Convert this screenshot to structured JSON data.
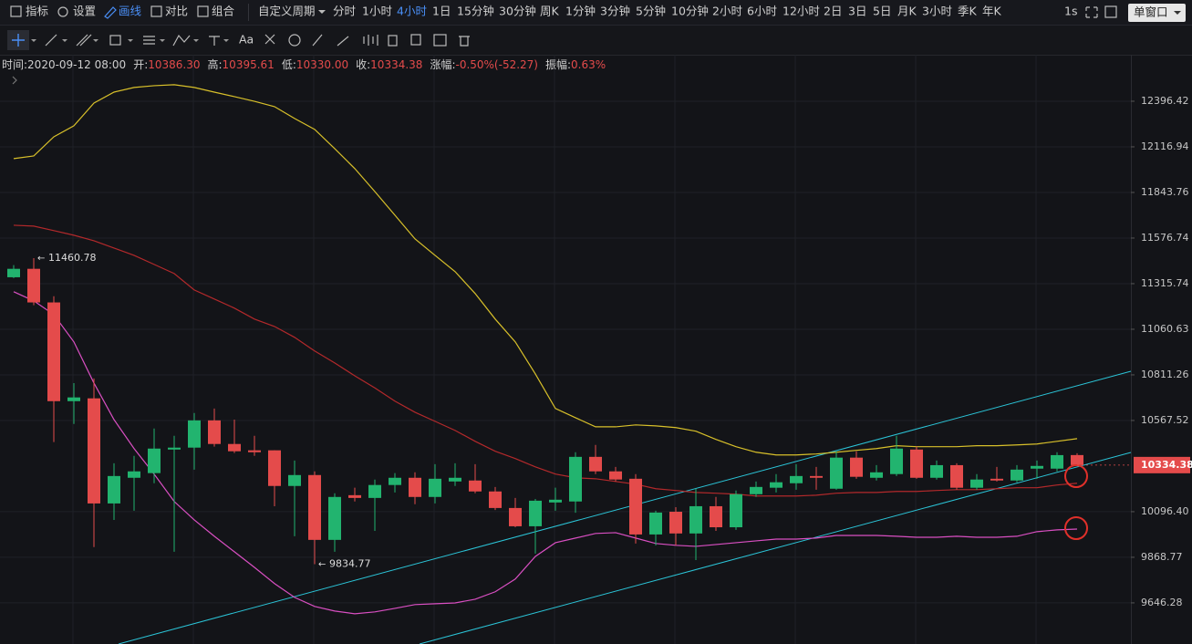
{
  "toolbar": {
    "tools": [
      "指标",
      "设置",
      "画线",
      "对比",
      "组合"
    ],
    "period_menu": "自定义周期",
    "periods": [
      "分时",
      "1小时",
      "4小时",
      "1日",
      "15分钟",
      "30分钟",
      "周K",
      "1分钟",
      "3分钟",
      "5分钟",
      "10分钟",
      "2小时",
      "6小时",
      "12小时",
      "2日",
      "3日",
      "5日",
      "月K",
      "3小时",
      "季K",
      "年K"
    ],
    "refresh": "1s",
    "window": "单窗口",
    "text_tool": "Aa"
  },
  "info": [
    {
      "label": "时间:",
      "value": "2020-09-12 08:00"
    },
    {
      "label": "开:",
      "value": "10386.30"
    },
    {
      "label": "高:",
      "value": "10395.61"
    },
    {
      "label": "低:",
      "value": "10330.00"
    },
    {
      "label": "收:",
      "value": "10334.38"
    },
    {
      "label": "涨幅:",
      "value": "-0.50%(-52.27)"
    },
    {
      "label": "振幅:",
      "value": "0.63%"
    }
  ],
  "chart_data": {
    "type": "candlestick",
    "log_scale": true,
    "grid": true,
    "up_color": "#22b46f",
    "down_color": "#e44b4b",
    "ylim": [
      9450,
      12688
    ],
    "yticks": [
      12396.42,
      12116.94,
      11843.76,
      11576.74,
      11315.74,
      11060.63,
      10811.26,
      10567.52,
      {
        "value": 10096.4,
        "label": "10096.40"
      },
      9868.77,
      9646.28
    ],
    "open": [
      11352,
      11400,
      11210,
      10670,
      10685,
      10138,
      10269,
      10293,
      10415,
      10425,
      10568,
      10444,
      10411,
      10411,
      10227,
      10283,
      9955,
      10180,
      10166,
      10232,
      10269,
      10171,
      10250,
      10255,
      10199,
      10115,
      10023,
      10143,
      10148,
      10377,
      10302,
      10264,
      9982,
      10096,
      9987,
      10124,
      10018,
      10185,
      10218,
      10241,
      10278,
      10213,
      10373,
      10269,
      10288,
      10415,
      10269,
      10334,
      10218,
      10264,
      10255,
      10316,
      10316,
      10386.3
    ],
    "high": [
      11421,
      11460.78,
      11245,
      10767,
      10792,
      10344,
      10382,
      10525,
      10487,
      10607,
      10631,
      10572,
      10487,
      10411,
      10358,
      10302,
      10190,
      10218,
      10260,
      10293,
      10297,
      10339,
      10344,
      10339,
      10222,
      10166,
      10161,
      10218,
      10401,
      10439,
      10325,
      10288,
      10101,
      10119,
      10213,
      10171,
      10204,
      10250,
      10288,
      10339,
      10325,
      10406,
      10406,
      10334,
      10487,
      10430,
      10358,
      10344,
      10288,
      10325,
      10334,
      10358,
      10401,
      10395.61
    ],
    "low": [
      11347,
      11194,
      10454,
      10549,
      9919,
      10055,
      10101,
      10241,
      9896,
      10311,
      10430,
      10397,
      10382,
      10124,
      9973,
      9834.77,
      9896,
      10148,
      10000,
      10194,
      10134,
      10138,
      10227,
      10190,
      10105,
      10018,
      9887,
      10101,
      10091,
      10288,
      10250,
      9937,
      9928,
      9928,
      9855,
      10000,
      10005,
      10171,
      10194,
      10208,
      10208,
      10208,
      10264,
      10255,
      10278,
      10264,
      10260,
      10208,
      10208,
      10250,
      10246,
      10264,
      10302,
      10330
    ],
    "close": [
      11400,
      11210,
      10670,
      10690,
      10138,
      10278,
      10302,
      10420,
      10425,
      10568,
      10444,
      10406,
      10401,
      10227,
      10283,
      9955,
      10171,
      10166,
      10232,
      10269,
      10171,
      10264,
      10269,
      10199,
      10115,
      10023,
      10152,
      10157,
      10377,
      10302,
      10260,
      9982,
      10092,
      9987,
      10124,
      10018,
      10185,
      10222,
      10246,
      10278,
      10269,
      10373,
      10274,
      10297,
      10420,
      10269,
      10334,
      10218,
      10260,
      10255,
      10311,
      10330,
      10386,
      10334.38
    ],
    "series": [
      {
        "color": "#d8c02a",
        "values": [
          12046,
          12062,
          12178,
          12245,
          12385,
          12453,
          12482,
          12493,
          12499,
          12482,
          12453,
          12425,
          12396,
          12363,
          12290,
          12223,
          12106,
          11986,
          11849,
          11710,
          11572,
          11477,
          11384,
          11260,
          11117,
          10991,
          10816,
          10631,
          10582,
          10534,
          10534,
          10544,
          10539,
          10530,
          10511,
          10468,
          10430,
          10401,
          10387,
          10387,
          10392,
          10401,
          10411,
          10420,
          10435,
          10430,
          10430,
          10430,
          10435,
          10435,
          10439,
          10444,
          10458,
          10472
        ]
      },
      {
        "color": "#b3292b",
        "values": [
          11651,
          11646,
          11620,
          11593,
          11561,
          11519,
          11477,
          11425,
          11373,
          11280,
          11229,
          11178,
          11117,
          11076,
          11016,
          10941,
          10876,
          10806,
          10741,
          10670,
          10611,
          10563,
          10515,
          10458,
          10406,
          10368,
          10325,
          10288,
          10269,
          10264,
          10250,
          10236,
          10213,
          10204,
          10194,
          10190,
          10185,
          10176,
          10176,
          10176,
          10180,
          10190,
          10194,
          10194,
          10199,
          10199,
          10204,
          10208,
          10208,
          10213,
          10218,
          10218,
          10232,
          10241
        ]
      },
      {
        "color": "#d94fc2",
        "values": [
          11270,
          11219,
          11142,
          10991,
          10767,
          10572,
          10420,
          10288,
          10148,
          10055,
          9973,
          9896,
          9819,
          9740,
          9673,
          9629,
          9607,
          9594,
          9603,
          9620,
          9638,
          9642,
          9646,
          9664,
          9700,
          9762,
          9873,
          9941,
          9964,
          9987,
          9991,
          9964,
          9937,
          9928,
          9923,
          9932,
          9941,
          9950,
          9959,
          9959,
          9964,
          9977,
          9977,
          9977,
          9973,
          9968,
          9968,
          9973,
          9968,
          9968,
          9973,
          9996,
          10005,
          10009
        ]
      }
    ]
  }
}
